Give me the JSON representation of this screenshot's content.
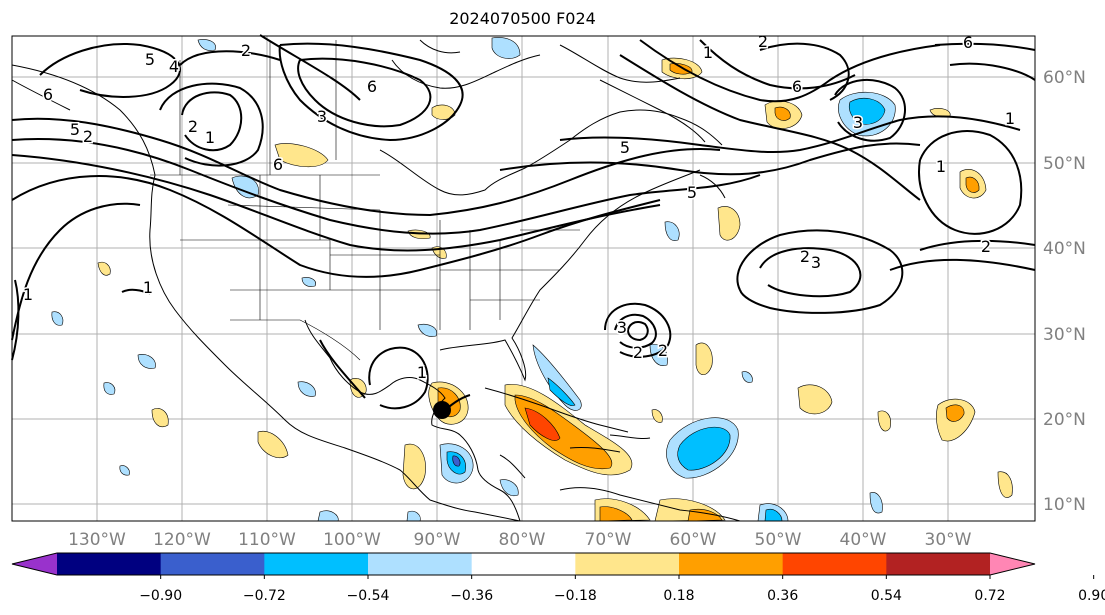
{
  "map": {
    "title": "2024070500 F024",
    "lon_labels": [
      "130°W",
      "120°W",
      "110°W",
      "100°W",
      "90°W",
      "80°W",
      "70°W",
      "60°W",
      "50°W",
      "40°W",
      "30°W"
    ],
    "lat_labels": [
      "60°N",
      "50°N",
      "40°N",
      "30°N",
      "20°N",
      "10°N"
    ],
    "contour_labels": [
      "5",
      "4",
      "2",
      "6",
      "5",
      "2",
      "1",
      "6",
      "3",
      "5",
      "1",
      "2",
      "6",
      "6",
      "2",
      "5",
      "6",
      "1",
      "3",
      "1",
      "2",
      "2",
      "1",
      "1",
      "2",
      "3",
      "3",
      "1",
      "2"
    ]
  },
  "colorbar": {
    "tick_labels": [
      "−0.90",
      "−0.72",
      "−0.54",
      "−0.36",
      "−0.18",
      "0.18",
      "0.36",
      "0.54",
      "0.72",
      "0.90"
    ],
    "colors": [
      "#9932cc",
      "#000080",
      "#3a5fcd",
      "#00bfff",
      "#aee0ff",
      "#ffffff",
      "#ffe68c",
      "#ff9f00",
      "#ff4500",
      "#b22222",
      "#ff86b4"
    ]
  }
}
